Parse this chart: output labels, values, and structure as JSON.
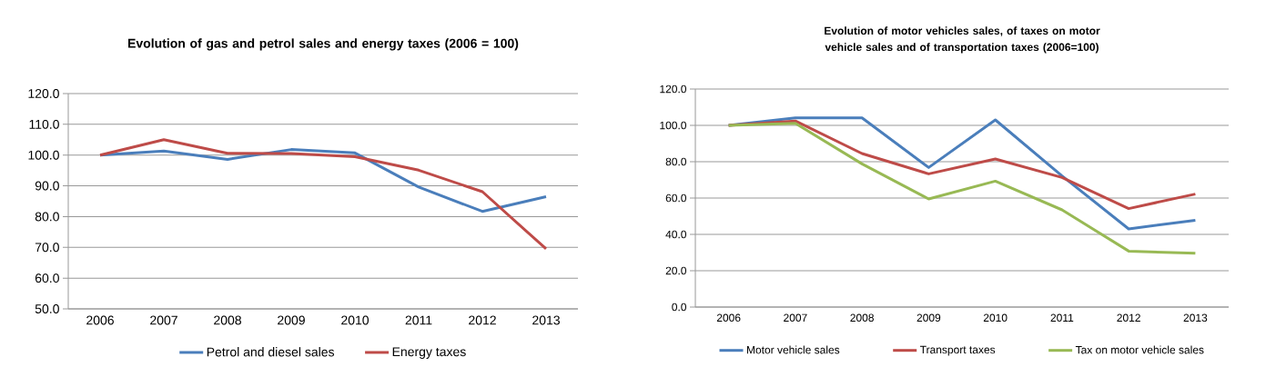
{
  "chart_data": [
    {
      "type": "line",
      "title": "Evolution of gas and petrol sales and  energy taxes (2006 = 100)",
      "categories": [
        "2006",
        "2007",
        "2008",
        "2009",
        "2010",
        "2011",
        "2012",
        "2013"
      ],
      "series": [
        {
          "name": "Petrol and diesel sales",
          "color": "#4a7ebb",
          "values": [
            100.0,
            101.3,
            98.6,
            101.8,
            100.7,
            89.6,
            81.7,
            86.5
          ]
        },
        {
          "name": "Energy taxes",
          "color": "#be4b48",
          "values": [
            100.0,
            105.0,
            100.6,
            100.5,
            99.5,
            95.1,
            88.1,
            69.5
          ]
        }
      ],
      "ylim": [
        50,
        120
      ],
      "yticks": [
        {
          "value": 50,
          "label": "50.0"
        },
        {
          "value": 60,
          "label": "60.0"
        },
        {
          "value": 70,
          "label": "70.0"
        },
        {
          "value": 80,
          "label": "80.0"
        },
        {
          "value": 90,
          "label": "90.0"
        },
        {
          "value": 100,
          "label": "100.0"
        },
        {
          "value": 110,
          "label": "110.0"
        },
        {
          "value": 120,
          "label": "120.0"
        }
      ],
      "grid": "y",
      "legend": "bottom"
    },
    {
      "type": "line",
      "title": "Evolution of  motor vehicles sales, of taxes on motor vehicle sales and of transportation taxes (2006=100)",
      "categories": [
        "2006",
        "2007",
        "2008",
        "2009",
        "2010",
        "2011",
        "2012",
        "2013"
      ],
      "series": [
        {
          "name": "Motor vehicle sales",
          "color": "#4a7ebb",
          "values": [
            100.0,
            104.1,
            104.1,
            76.8,
            103.0,
            72.2,
            43.0,
            47.8
          ]
        },
        {
          "name": "Transport taxes",
          "color": "#be4b48",
          "values": [
            100.0,
            102.4,
            84.5,
            73.3,
            81.5,
            71.3,
            54.2,
            62.2
          ]
        },
        {
          "name": "Tax on motor vehicle sales",
          "color": "#98b954",
          "values": [
            100.0,
            101.1,
            78.8,
            59.5,
            69.3,
            53.5,
            30.8,
            29.6
          ]
        }
      ],
      "ylim": [
        0,
        120
      ],
      "yticks": [
        {
          "value": 0,
          "label": "0.0"
        },
        {
          "value": 20,
          "label": "20.0"
        },
        {
          "value": 40,
          "label": "40.0"
        },
        {
          "value": 60,
          "label": "60.0"
        },
        {
          "value": 80,
          "label": "80.0"
        },
        {
          "value": 100,
          "label": "100.0"
        },
        {
          "value": 120,
          "label": "120.0"
        }
      ],
      "grid": "y",
      "legend": "bottom"
    }
  ]
}
